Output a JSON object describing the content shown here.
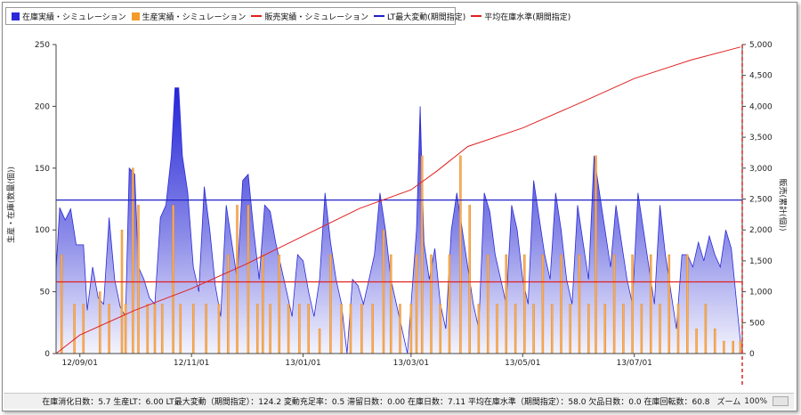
{
  "legend": {
    "items": [
      {
        "label": "在庫実績・シミュレーション",
        "kind": "box",
        "color": "#2a2ad8"
      },
      {
        "label": "生産実績・シミュレーション",
        "kind": "box",
        "color": "#f39a2a"
      },
      {
        "label": "販売実績・シミュレーション",
        "kind": "line",
        "color": "#e02020"
      },
      {
        "label": "LT最大変動(期間指定)",
        "kind": "line",
        "color": "#2020c8"
      },
      {
        "label": "平均在庫水準(期間指定)",
        "kind": "line",
        "color": "#e02020"
      }
    ]
  },
  "axes": {
    "left_label": "生産・在庫(数量(個))",
    "right_label": "販売(累計(個))"
  },
  "status": {
    "summary": "在庫消化日数：5.7 生産LT：6.00 LT最大変動（期間指定）：124.2 変動充足率：0.5 滞留日数：0.00 在庫日数：7.11 平均在庫水準（期間指定）：58.0 欠品日数：0.0 在庫回転数：60.8",
    "zoom_label": "ズーム",
    "zoom_value": "100%"
  },
  "chart_data": {
    "type": "area",
    "x_axis": {
      "type": "date",
      "range": [
        "2012-08-19",
        "2013-08-29"
      ],
      "tick_labels": [
        "12/09/01",
        "12/11/01",
        "13/01/01",
        "13/03/01",
        "13/05/01",
        "13/07/01"
      ],
      "tick_dates": [
        "2012-09-01",
        "2012-11-01",
        "2013-01-01",
        "2013-03-01",
        "2013-05-01",
        "2013-07-01"
      ]
    },
    "y_left": {
      "range": [
        0,
        250
      ],
      "ticks": [
        "0",
        "50",
        "100",
        "150",
        "200",
        "250"
      ]
    },
    "y_right": {
      "range": [
        0,
        5000
      ],
      "ticks": [
        "0",
        "500",
        "1,000",
        "1,500",
        "2,000",
        "2,500",
        "3,000",
        "3,500",
        "4,000",
        "4,500",
        "5,000"
      ]
    },
    "grid": false,
    "legend_position": "top-left",
    "series": [
      {
        "name": "在庫実績・シミュレーション",
        "type": "area",
        "axis": "left",
        "color": "#2a2ad8",
        "points": [
          [
            "2012-08-19",
            68
          ],
          [
            "2012-08-21",
            118
          ],
          [
            "2012-08-24",
            108
          ],
          [
            "2012-08-27",
            117
          ],
          [
            "2012-08-30",
            88
          ],
          [
            "2012-09-03",
            88
          ],
          [
            "2012-09-05",
            35
          ],
          [
            "2012-09-08",
            70
          ],
          [
            "2012-09-11",
            45
          ],
          [
            "2012-09-14",
            40
          ],
          [
            "2012-09-17",
            110
          ],
          [
            "2012-09-20",
            60
          ],
          [
            "2012-09-23",
            38
          ],
          [
            "2012-09-26",
            30
          ],
          [
            "2012-09-28",
            150
          ],
          [
            "2012-10-01",
            145
          ],
          [
            "2012-10-03",
            70
          ],
          [
            "2012-10-06",
            60
          ],
          [
            "2012-10-09",
            45
          ],
          [
            "2012-10-12",
            40
          ],
          [
            "2012-10-15",
            110
          ],
          [
            "2012-10-18",
            120
          ],
          [
            "2012-10-21",
            160
          ],
          [
            "2012-10-23",
            215
          ],
          [
            "2012-10-25",
            215
          ],
          [
            "2012-10-27",
            160
          ],
          [
            "2012-10-30",
            130
          ],
          [
            "2012-11-02",
            70
          ],
          [
            "2012-11-05",
            50
          ],
          [
            "2012-11-08",
            135
          ],
          [
            "2012-11-11",
            100
          ],
          [
            "2012-11-14",
            55
          ],
          [
            "2012-11-17",
            30
          ],
          [
            "2012-11-20",
            120
          ],
          [
            "2012-11-23",
            90
          ],
          [
            "2012-11-26",
            60
          ],
          [
            "2012-11-29",
            140
          ],
          [
            "2012-12-02",
            145
          ],
          [
            "2012-12-05",
            100
          ],
          [
            "2012-12-08",
            60
          ],
          [
            "2012-12-11",
            120
          ],
          [
            "2012-12-14",
            115
          ],
          [
            "2012-12-17",
            90
          ],
          [
            "2012-12-20",
            70
          ],
          [
            "2012-12-23",
            50
          ],
          [
            "2012-12-26",
            30
          ],
          [
            "2012-12-29",
            80
          ],
          [
            "2013-01-01",
            75
          ],
          [
            "2013-01-04",
            50
          ],
          [
            "2013-01-07",
            30
          ],
          [
            "2013-01-10",
            60
          ],
          [
            "2013-01-13",
            130
          ],
          [
            "2013-01-16",
            90
          ],
          [
            "2013-01-19",
            60
          ],
          [
            "2013-01-22",
            40
          ],
          [
            "2013-01-25",
            0
          ],
          [
            "2013-01-28",
            60
          ],
          [
            "2013-01-31",
            55
          ],
          [
            "2013-02-03",
            40
          ],
          [
            "2013-02-06",
            60
          ],
          [
            "2013-02-09",
            80
          ],
          [
            "2013-02-12",
            130
          ],
          [
            "2013-02-15",
            100
          ],
          [
            "2013-02-18",
            60
          ],
          [
            "2013-02-21",
            40
          ],
          [
            "2013-02-24",
            20
          ],
          [
            "2013-02-27",
            0
          ],
          [
            "2013-03-01",
            40
          ],
          [
            "2013-03-04",
            100
          ],
          [
            "2013-03-06",
            200
          ],
          [
            "2013-03-08",
            90
          ],
          [
            "2013-03-11",
            60
          ],
          [
            "2013-03-14",
            85
          ],
          [
            "2013-03-17",
            40
          ],
          [
            "2013-03-20",
            20
          ],
          [
            "2013-03-23",
            100
          ],
          [
            "2013-03-26",
            130
          ],
          [
            "2013-03-29",
            100
          ],
          [
            "2013-04-01",
            70
          ],
          [
            "2013-04-04",
            40
          ],
          [
            "2013-04-07",
            20
          ],
          [
            "2013-04-10",
            130
          ],
          [
            "2013-04-13",
            115
          ],
          [
            "2013-04-16",
            80
          ],
          [
            "2013-04-19",
            60
          ],
          [
            "2013-04-22",
            40
          ],
          [
            "2013-04-25",
            120
          ],
          [
            "2013-04-28",
            100
          ],
          [
            "2013-05-01",
            60
          ],
          [
            "2013-05-04",
            40
          ],
          [
            "2013-05-07",
            140
          ],
          [
            "2013-05-10",
            110
          ],
          [
            "2013-05-13",
            80
          ],
          [
            "2013-05-16",
            60
          ],
          [
            "2013-05-19",
            130
          ],
          [
            "2013-05-22",
            100
          ],
          [
            "2013-05-25",
            60
          ],
          [
            "2013-05-28",
            40
          ],
          [
            "2013-05-31",
            120
          ],
          [
            "2013-06-03",
            90
          ],
          [
            "2013-06-06",
            60
          ],
          [
            "2013-06-09",
            160
          ],
          [
            "2013-06-12",
            130
          ],
          [
            "2013-06-15",
            100
          ],
          [
            "2013-06-18",
            70
          ],
          [
            "2013-06-21",
            120
          ],
          [
            "2013-06-24",
            90
          ],
          [
            "2013-06-27",
            60
          ],
          [
            "2013-06-30",
            40
          ],
          [
            "2013-07-03",
            130
          ],
          [
            "2013-07-06",
            100
          ],
          [
            "2013-07-09",
            70
          ],
          [
            "2013-07-12",
            40
          ],
          [
            "2013-07-15",
            120
          ],
          [
            "2013-07-18",
            80
          ],
          [
            "2013-07-21",
            50
          ],
          [
            "2013-07-24",
            20
          ],
          [
            "2013-07-27",
            80
          ],
          [
            "2013-07-30",
            80
          ],
          [
            "2013-08-02",
            70
          ],
          [
            "2013-08-05",
            90
          ],
          [
            "2013-08-08",
            75
          ],
          [
            "2013-08-11",
            95
          ],
          [
            "2013-08-14",
            80
          ],
          [
            "2013-08-17",
            70
          ],
          [
            "2013-08-20",
            100
          ],
          [
            "2013-08-23",
            85
          ],
          [
            "2013-08-26",
            40
          ],
          [
            "2013-08-28",
            10
          ]
        ]
      },
      {
        "name": "生産実績・シミュレーション",
        "type": "bar",
        "axis": "left",
        "color": "#f39a2a",
        "points": [
          [
            "2012-08-22",
            80
          ],
          [
            "2012-08-29",
            40
          ],
          [
            "2012-09-03",
            40
          ],
          [
            "2012-09-12",
            50
          ],
          [
            "2012-09-17",
            40
          ],
          [
            "2012-09-24",
            100
          ],
          [
            "2012-09-26",
            40
          ],
          [
            "2012-09-30",
            150
          ],
          [
            "2012-10-03",
            120
          ],
          [
            "2012-10-08",
            40
          ],
          [
            "2012-10-12",
            40
          ],
          [
            "2012-10-16",
            40
          ],
          [
            "2012-10-22",
            120
          ],
          [
            "2012-10-26",
            40
          ],
          [
            "2012-11-02",
            40
          ],
          [
            "2012-11-09",
            40
          ],
          [
            "2012-11-16",
            40
          ],
          [
            "2012-11-21",
            80
          ],
          [
            "2012-11-26",
            120
          ],
          [
            "2012-12-02",
            120
          ],
          [
            "2012-12-07",
            40
          ],
          [
            "2012-12-10",
            80
          ],
          [
            "2012-12-14",
            40
          ],
          [
            "2012-12-19",
            80
          ],
          [
            "2012-12-24",
            40
          ],
          [
            "2012-12-30",
            40
          ],
          [
            "2013-01-04",
            40
          ],
          [
            "2013-01-10",
            20
          ],
          [
            "2013-01-16",
            80
          ],
          [
            "2013-01-22",
            40
          ],
          [
            "2013-01-27",
            40
          ],
          [
            "2013-02-02",
            40
          ],
          [
            "2013-02-08",
            40
          ],
          [
            "2013-02-14",
            100
          ],
          [
            "2013-02-18",
            80
          ],
          [
            "2013-02-23",
            40
          ],
          [
            "2013-03-01",
            40
          ],
          [
            "2013-03-04",
            80
          ],
          [
            "2013-03-07",
            160
          ],
          [
            "2013-03-12",
            80
          ],
          [
            "2013-03-17",
            40
          ],
          [
            "2013-03-22",
            80
          ],
          [
            "2013-03-28",
            160
          ],
          [
            "2013-04-02",
            120
          ],
          [
            "2013-04-07",
            40
          ],
          [
            "2013-04-12",
            80
          ],
          [
            "2013-04-17",
            40
          ],
          [
            "2013-04-22",
            80
          ],
          [
            "2013-04-27",
            40
          ],
          [
            "2013-05-02",
            80
          ],
          [
            "2013-05-07",
            40
          ],
          [
            "2013-05-12",
            80
          ],
          [
            "2013-05-17",
            40
          ],
          [
            "2013-05-22",
            80
          ],
          [
            "2013-05-27",
            40
          ],
          [
            "2013-06-01",
            80
          ],
          [
            "2013-06-06",
            40
          ],
          [
            "2013-06-10",
            160
          ],
          [
            "2013-06-15",
            40
          ],
          [
            "2013-06-20",
            80
          ],
          [
            "2013-06-25",
            40
          ],
          [
            "2013-06-30",
            80
          ],
          [
            "2013-07-05",
            40
          ],
          [
            "2013-07-10",
            80
          ],
          [
            "2013-07-15",
            40
          ],
          [
            "2013-07-20",
            80
          ],
          [
            "2013-07-25",
            40
          ],
          [
            "2013-07-30",
            80
          ],
          [
            "2013-08-04",
            20
          ],
          [
            "2013-08-09",
            40
          ],
          [
            "2013-08-14",
            20
          ],
          [
            "2013-08-19",
            10
          ],
          [
            "2013-08-24",
            10
          ],
          [
            "2013-08-28",
            10
          ]
        ]
      },
      {
        "name": "販売実績・シミュレーション",
        "type": "line",
        "axis": "right",
        "color": "#e02020",
        "points": [
          [
            "2012-08-19",
            0
          ],
          [
            "2012-09-01",
            300
          ],
          [
            "2012-10-01",
            700
          ],
          [
            "2012-11-01",
            1050
          ],
          [
            "2012-12-01",
            1450
          ],
          [
            "2013-01-01",
            1900
          ],
          [
            "2013-02-01",
            2350
          ],
          [
            "2013-03-01",
            2650
          ],
          [
            "2013-03-15",
            2950
          ],
          [
            "2013-04-01",
            3350
          ],
          [
            "2013-05-01",
            3650
          ],
          [
            "2013-06-01",
            4050
          ],
          [
            "2013-07-01",
            4450
          ],
          [
            "2013-08-01",
            4750
          ],
          [
            "2013-08-28",
            4960
          ]
        ]
      },
      {
        "name": "LT最大変動(期間指定)",
        "type": "hline",
        "axis": "left",
        "color": "#2020c8",
        "value": 124.2
      },
      {
        "name": "平均在庫水準(期間指定)",
        "type": "hline",
        "axis": "left",
        "color": "#e02020",
        "value": 58.0
      }
    ]
  }
}
